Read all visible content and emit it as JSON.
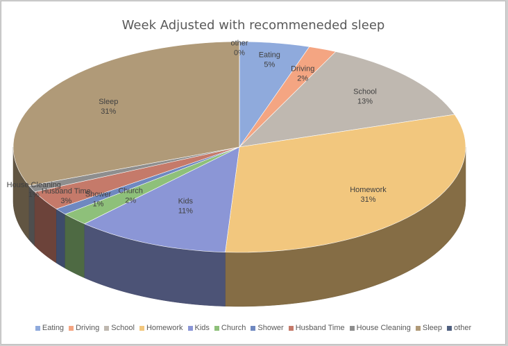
{
  "chart_data": {
    "type": "pie",
    "title": "Week Adjusted with recommeneded sleep",
    "legend_position": "bottom",
    "three_d": true,
    "slices": [
      {
        "name": "Eating",
        "value": 5,
        "label": "5%",
        "color": "#8faadc"
      },
      {
        "name": "Driving",
        "value": 2,
        "label": "2%",
        "color": "#f4a582"
      },
      {
        "name": "School",
        "value": 13,
        "label": "13%",
        "color": "#bfb8b0"
      },
      {
        "name": "Homework",
        "value": 31,
        "label": "31%",
        "color": "#f2c77e"
      },
      {
        "name": "Kids",
        "value": 11,
        "label": "11%",
        "color": "#8b96d6"
      },
      {
        "name": "Church",
        "value": 2,
        "label": "2%",
        "color": "#8ec07a"
      },
      {
        "name": "Shower",
        "value": 1,
        "label": "1%",
        "color": "#6f88c0"
      },
      {
        "name": "Husband Time",
        "value": 3,
        "label": "3%",
        "color": "#c57a6a"
      },
      {
        "name": "House Cleaning",
        "value": 1,
        "label": "1%",
        "color": "#8e8e8e"
      },
      {
        "name": "Sleep",
        "value": 31,
        "label": "31%",
        "color": "#b09a78"
      },
      {
        "name": "other",
        "value": 0,
        "label": "0%",
        "color": "#4f5f7f"
      }
    ]
  }
}
